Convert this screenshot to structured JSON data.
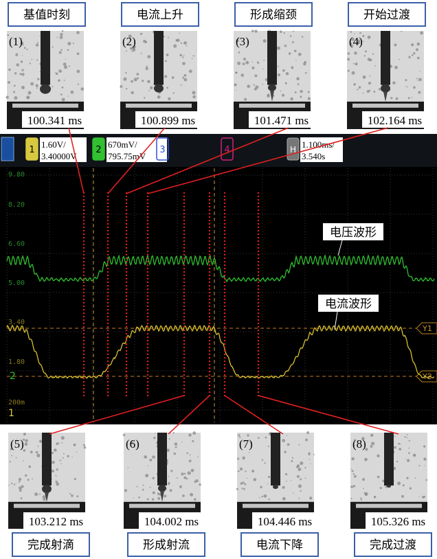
{
  "top_panels": [
    {
      "label": "基值时刻",
      "index": "(1)",
      "time": "100.341 ms"
    },
    {
      "label": "电流上升",
      "index": "(2)",
      "time": "100.899 ms"
    },
    {
      "label": "形成缩颈",
      "index": "(3)",
      "time": "101.471 ms"
    },
    {
      "label": "开始过渡",
      "index": "(4)",
      "time": "102.164 ms"
    }
  ],
  "bottom_panels": [
    {
      "label": "完成射滴",
      "index": "(5)",
      "time": "103.212 ms"
    },
    {
      "label": "形成射流",
      "index": "(6)",
      "time": "104.002 ms"
    },
    {
      "label": "电流下降",
      "index": "(7)",
      "time": "104.446 ms"
    },
    {
      "label": "完成过渡",
      "index": "(8)",
      "time": "105.326 ms"
    }
  ],
  "scope": {
    "channels": [
      {
        "number": "1",
        "scale": "1.60V/",
        "offset": "3.40000V"
      },
      {
        "number": "2",
        "scale": "670mV/",
        "offset": "795.75mV"
      },
      {
        "number": "3"
      },
      {
        "number": "4"
      }
    ],
    "horizontal": {
      "label": "H",
      "scale": "1.100ms/",
      "position": "3.540s"
    },
    "axis_labels": [
      "9.80",
      "8.20",
      "6.60",
      "5.00",
      "3.40",
      "1.80",
      "200m"
    ],
    "cursors": [
      "Y1",
      "Y2"
    ],
    "markers": [
      "2",
      "1"
    ],
    "waveform_labels": [
      "电压波形",
      "电流波形"
    ]
  }
}
